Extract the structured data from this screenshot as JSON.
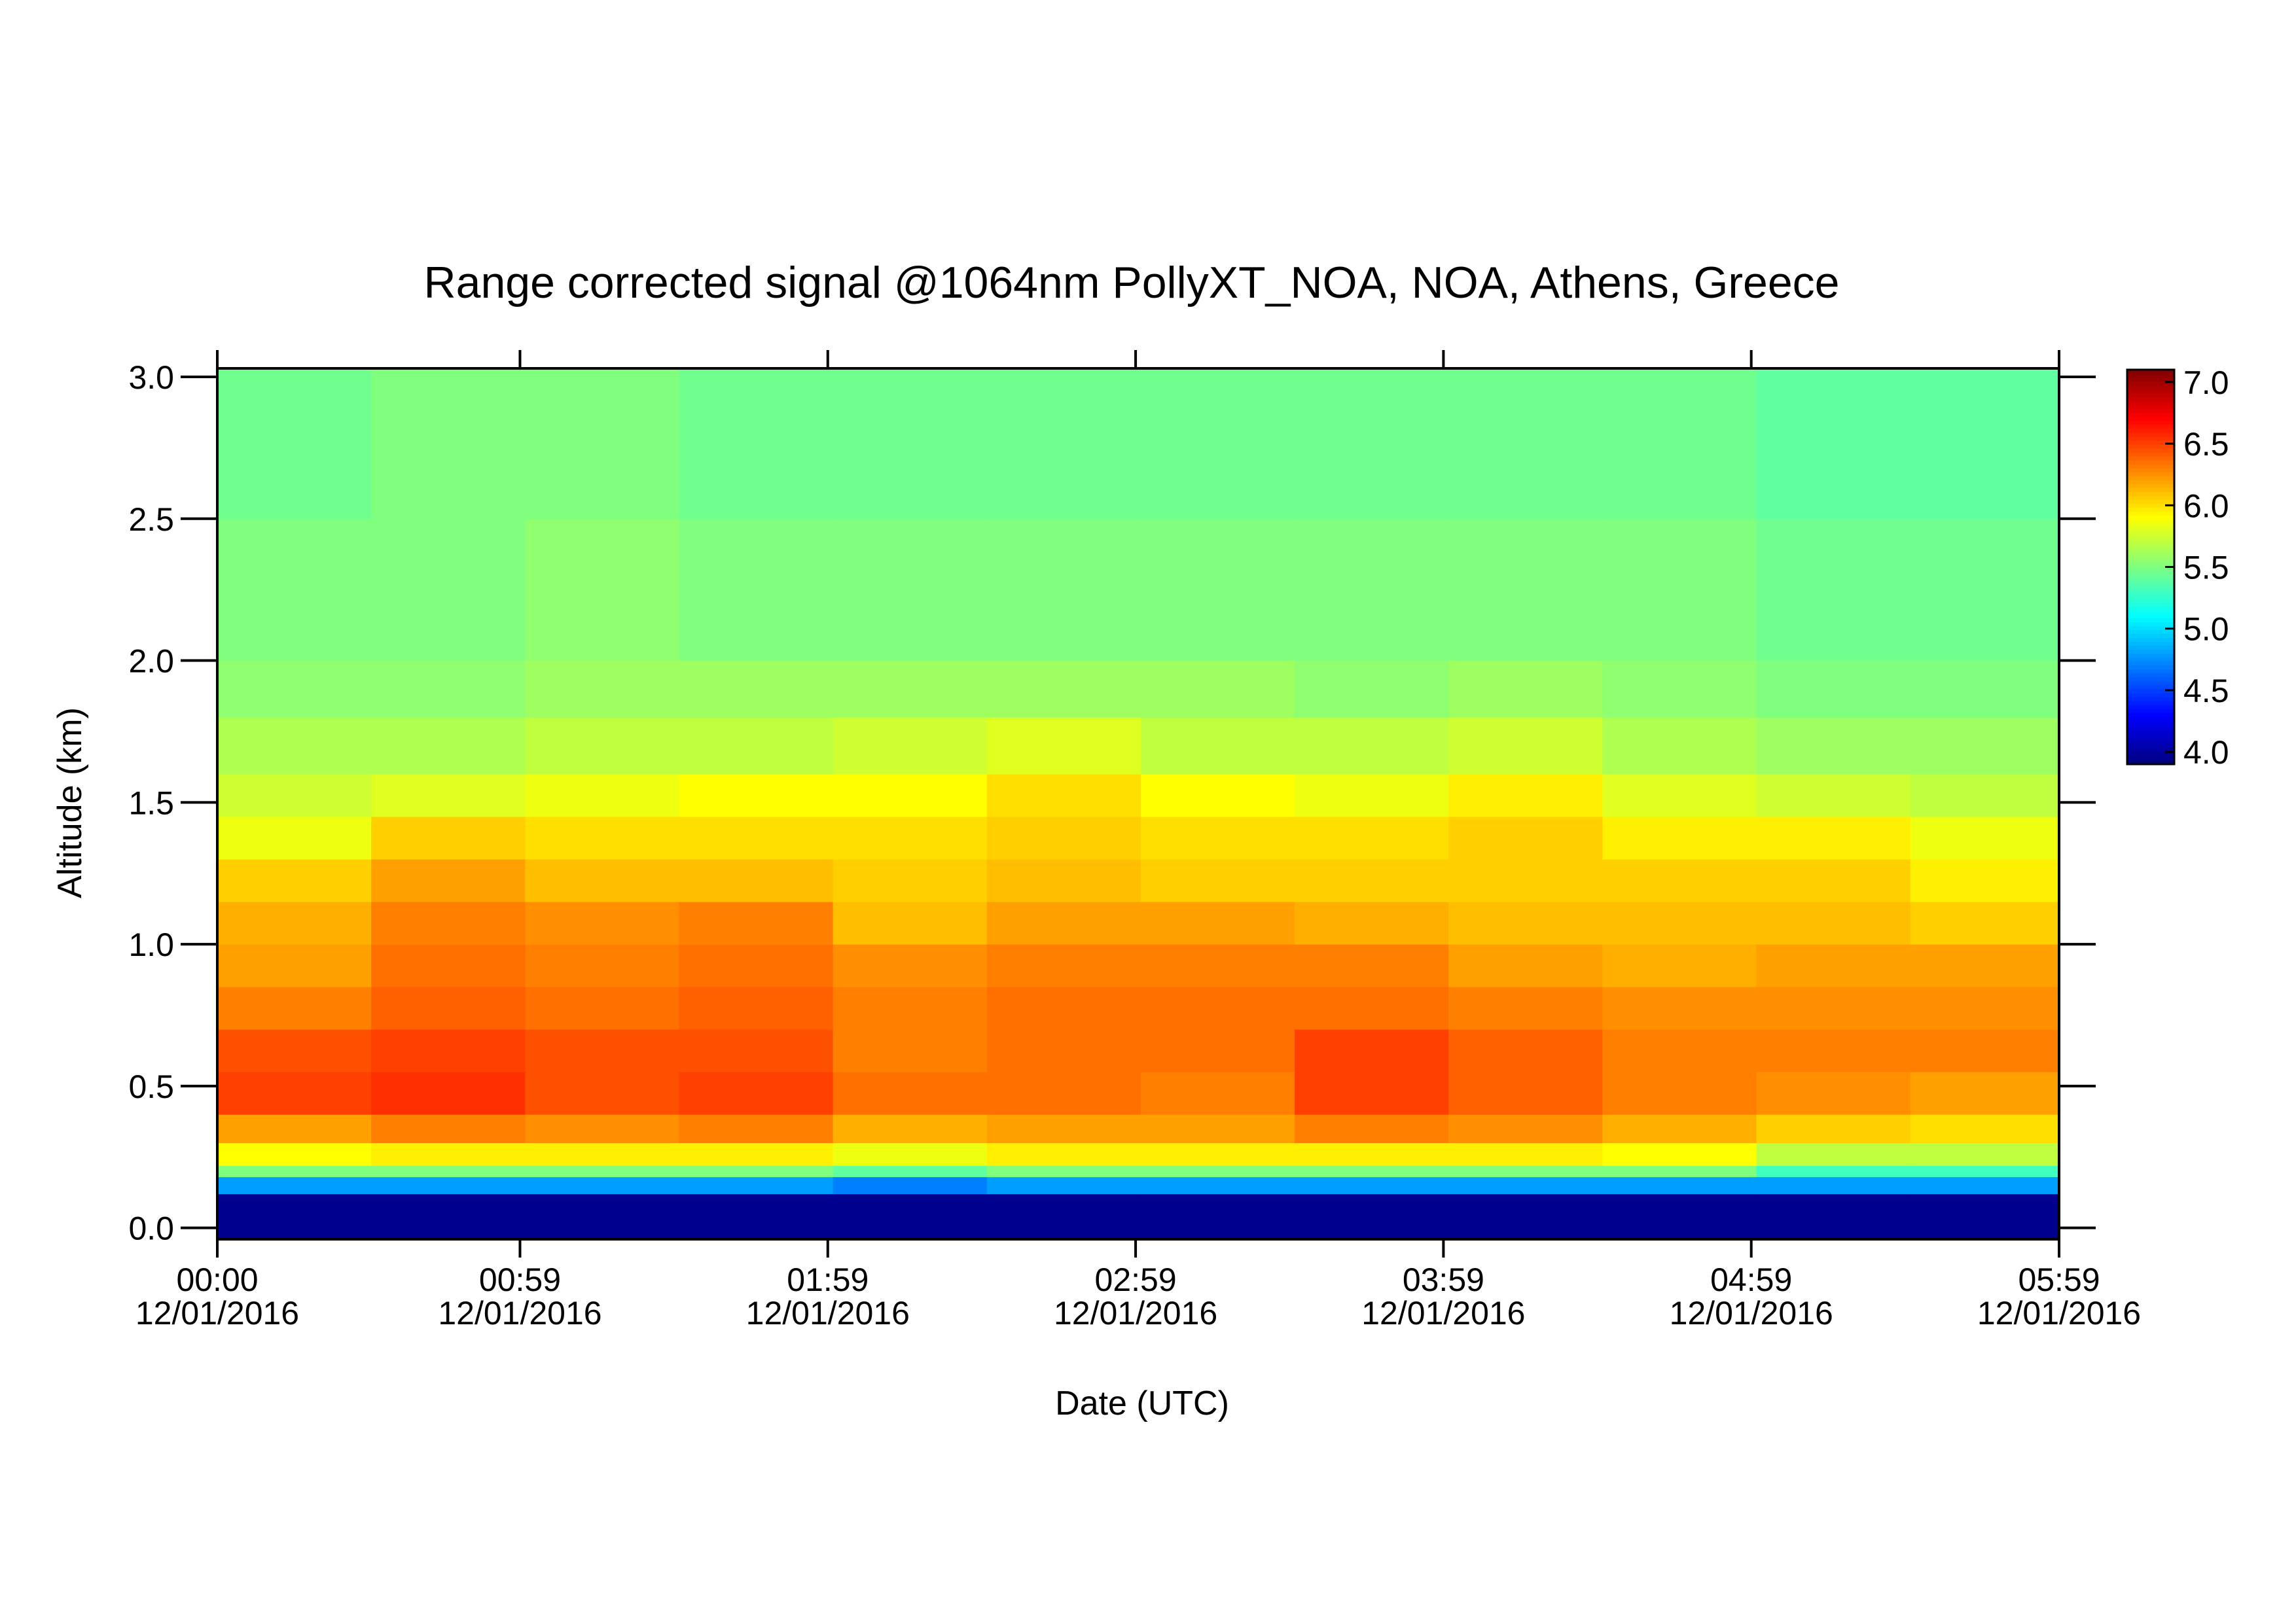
{
  "chart_data": {
    "type": "heatmap",
    "title": "Range corrected signal @1064nm  PollyXT_NOA, NOA, Athens, Greece",
    "x_label": "Date (UTC)",
    "y_label": "Altitude (km)",
    "x": [
      "00:00",
      "00:30",
      "01:00",
      "01:30",
      "02:00",
      "02:30",
      "03:00",
      "03:30",
      "04:00",
      "04:30",
      "05:00",
      "05:30"
    ],
    "xlim": [
      "00:00",
      "05:59"
    ],
    "xticks": [
      "00:00",
      "00:59",
      "01:59",
      "02:59",
      "03:59",
      "04:59",
      "05:59"
    ],
    "xtick_dates": [
      "12/01/2016",
      "12/01/2016",
      "12/01/2016",
      "12/01/2016",
      "12/01/2016",
      "12/01/2016",
      "12/01/2016"
    ],
    "y_edges": [
      -0.04,
      0.12,
      0.18,
      0.22,
      0.3,
      0.4,
      0.55,
      0.7,
      0.85,
      1.0,
      1.15,
      1.3,
      1.45,
      1.6,
      1.8,
      2.0,
      2.5,
      3.03
    ],
    "ylim": [
      -0.04,
      3.03
    ],
    "yticks": [
      {
        "value": 0,
        "label": "0.0"
      },
      0.5,
      {
        "value": 1,
        "label": "1.0"
      },
      1.5,
      {
        "value": 2,
        "label": "2.0"
      },
      2.5,
      {
        "value": 3,
        "label": "3.0"
      }
    ],
    "zlim": [
      3.9,
      7.1
    ],
    "zticks": [
      {
        "value": 4,
        "label": "4.0"
      },
      4.5,
      {
        "value": 5,
        "label": "5.0"
      },
      5.5,
      {
        "value": 6,
        "label": "6.0"
      },
      6.5,
      {
        "value": 7,
        "label": "7.0"
      }
    ],
    "colormap": "jet",
    "z": [
      [
        3.95,
        3.95,
        3.95,
        3.95,
        3.95,
        3.95,
        3.95,
        3.95,
        3.95,
        3.95,
        3.95,
        3.95
      ],
      [
        4.8,
        4.8,
        4.8,
        4.8,
        4.7,
        4.8,
        4.8,
        4.8,
        4.8,
        4.8,
        4.8,
        4.8
      ],
      [
        5.5,
        5.5,
        5.5,
        5.5,
        5.4,
        5.5,
        5.5,
        5.5,
        5.5,
        5.5,
        5.3,
        5.3
      ],
      [
        5.9,
        5.95,
        5.95,
        5.95,
        5.85,
        5.95,
        5.95,
        5.95,
        5.95,
        5.9,
        5.7,
        5.7
      ],
      [
        6.2,
        6.3,
        6.25,
        6.3,
        6.15,
        6.2,
        6.2,
        6.3,
        6.25,
        6.15,
        6.05,
        6.0
      ],
      [
        6.5,
        6.55,
        6.45,
        6.5,
        6.35,
        6.35,
        6.3,
        6.5,
        6.4,
        6.3,
        6.25,
        6.2
      ],
      [
        6.45,
        6.5,
        6.45,
        6.45,
        6.3,
        6.35,
        6.35,
        6.5,
        6.4,
        6.3,
        6.3,
        6.3
      ],
      [
        6.3,
        6.4,
        6.35,
        6.4,
        6.3,
        6.35,
        6.35,
        6.35,
        6.3,
        6.25,
        6.25,
        6.25
      ],
      [
        6.2,
        6.35,
        6.3,
        6.35,
        6.25,
        6.3,
        6.3,
        6.3,
        6.2,
        6.15,
        6.2,
        6.2
      ],
      [
        6.15,
        6.3,
        6.25,
        6.3,
        6.1,
        6.2,
        6.2,
        6.15,
        6.1,
        6.1,
        6.1,
        6.05
      ],
      [
        6.05,
        6.2,
        6.1,
        6.1,
        6.05,
        6.1,
        6.05,
        6.05,
        6.05,
        6.05,
        6.05,
        5.95
      ],
      [
        5.85,
        6.05,
        6.0,
        6.0,
        6.0,
        6.05,
        6.0,
        6.0,
        6.05,
        5.95,
        5.95,
        5.85
      ],
      [
        5.75,
        5.8,
        5.85,
        5.9,
        5.9,
        6.0,
        5.9,
        5.85,
        5.95,
        5.8,
        5.75,
        5.7
      ],
      [
        5.65,
        5.65,
        5.7,
        5.7,
        5.75,
        5.8,
        5.7,
        5.7,
        5.75,
        5.65,
        5.6,
        5.6
      ],
      [
        5.55,
        5.55,
        5.6,
        5.6,
        5.6,
        5.6,
        5.6,
        5.55,
        5.6,
        5.55,
        5.5,
        5.5
      ],
      [
        5.5,
        5.5,
        5.55,
        5.5,
        5.5,
        5.5,
        5.5,
        5.5,
        5.5,
        5.5,
        5.45,
        5.45
      ],
      [
        5.45,
        5.5,
        5.5,
        5.45,
        5.45,
        5.45,
        5.45,
        5.45,
        5.45,
        5.45,
        5.4,
        5.4
      ]
    ]
  }
}
